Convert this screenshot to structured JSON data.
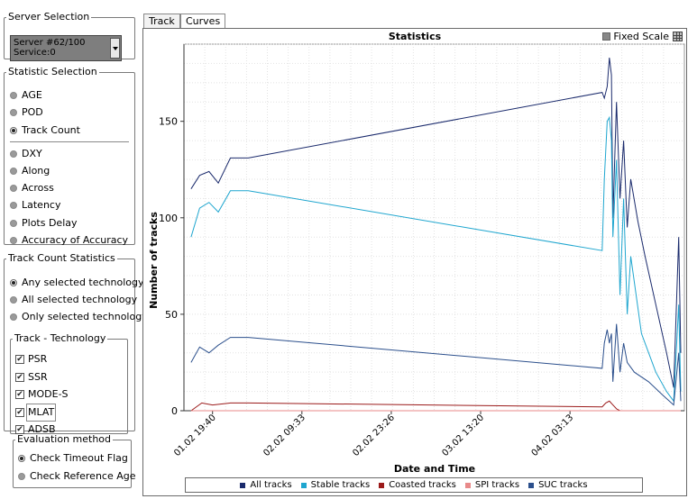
{
  "server_selection": {
    "legend": "Server Selection",
    "combo_line1": "Server #62/100",
    "combo_line2": "Service:0"
  },
  "statistic_selection": {
    "legend": "Statistic Selection",
    "items": [
      {
        "label": "AGE",
        "selected": false
      },
      {
        "label": "POD",
        "selected": false
      },
      {
        "label": "Track Count",
        "selected": true
      },
      {
        "label": "DXY",
        "selected": false
      },
      {
        "label": "Along",
        "selected": false
      },
      {
        "label": "Across",
        "selected": false
      },
      {
        "label": "Latency",
        "selected": false
      },
      {
        "label": "Plots Delay",
        "selected": false
      },
      {
        "label": "Accuracy of Accuracy",
        "selected": false
      }
    ]
  },
  "track_count_statistics": {
    "legend": "Track Count Statistics",
    "items": [
      {
        "label": "Any selected technology",
        "selected": true
      },
      {
        "label": "All selected technology",
        "selected": false
      },
      {
        "label": "Only selected technology",
        "selected": false
      }
    ],
    "technology": {
      "legend": "Track - Technology",
      "items": [
        {
          "label": "PSR",
          "checked": true
        },
        {
          "label": "SSR",
          "checked": true
        },
        {
          "label": "MODE-S",
          "checked": true
        },
        {
          "label": "MLAT",
          "checked": true
        },
        {
          "label": "ADSB",
          "checked": true
        }
      ]
    }
  },
  "evaluation_method": {
    "legend": "Evaluation method",
    "items": [
      {
        "label": "Check Timeout Flag",
        "selected": true
      },
      {
        "label": "Check Reference Age",
        "selected": false
      }
    ]
  },
  "tabs": [
    {
      "label": "Track",
      "active": false
    },
    {
      "label": "Curves",
      "active": true
    }
  ],
  "fixed_scale_label": "Fixed Scale",
  "chart_data": {
    "type": "line",
    "title": "Statistics",
    "xlabel": "Date and Time",
    "ylabel": "Number of tracks",
    "ylim": [
      0,
      190
    ],
    "y_ticks": [
      0,
      50,
      100,
      150
    ],
    "x_tick_labels": [
      "01.02 19:40",
      "02.02 09:33",
      "02.02 23:26",
      "03.02 13:20",
      "04.02 03:13"
    ],
    "grid": true,
    "legend_position": "bottom",
    "series": [
      {
        "name": "All tracks",
        "color": "#1a2a6c",
        "points": [
          [
            0,
            115
          ],
          [
            0.12,
            122
          ],
          [
            0.25,
            124
          ],
          [
            0.38,
            118
          ],
          [
            0.55,
            131
          ],
          [
            0.8,
            131
          ],
          [
            5.75,
            165
          ],
          [
            5.78,
            162
          ],
          [
            5.82,
            168
          ],
          [
            5.85,
            183
          ],
          [
            5.88,
            174
          ],
          [
            5.9,
            100
          ],
          [
            5.95,
            160
          ],
          [
            6.0,
            110
          ],
          [
            6.05,
            140
          ],
          [
            6.1,
            95
          ],
          [
            6.15,
            120
          ],
          [
            6.25,
            98
          ],
          [
            6.35,
            80
          ],
          [
            6.5,
            55
          ],
          [
            6.65,
            30
          ],
          [
            6.75,
            12
          ],
          [
            6.82,
            90
          ],
          [
            6.85,
            30
          ]
        ]
      },
      {
        "name": "Stable tracks",
        "color": "#1fa6cf",
        "points": [
          [
            0,
            90
          ],
          [
            0.12,
            105
          ],
          [
            0.25,
            108
          ],
          [
            0.38,
            103
          ],
          [
            0.55,
            114
          ],
          [
            0.8,
            114
          ],
          [
            5.75,
            83
          ],
          [
            5.78,
            120
          ],
          [
            5.82,
            150
          ],
          [
            5.85,
            152
          ],
          [
            5.88,
            140
          ],
          [
            5.9,
            90
          ],
          [
            5.95,
            130
          ],
          [
            6.0,
            60
          ],
          [
            6.05,
            110
          ],
          [
            6.1,
            50
          ],
          [
            6.15,
            80
          ],
          [
            6.3,
            40
          ],
          [
            6.5,
            20
          ],
          [
            6.65,
            10
          ],
          [
            6.75,
            5
          ],
          [
            6.82,
            55
          ],
          [
            6.85,
            10
          ]
        ]
      },
      {
        "name": "Coasted tracks",
        "color": "#9b1a1a",
        "points": [
          [
            0,
            0
          ],
          [
            0.15,
            4
          ],
          [
            0.3,
            3
          ],
          [
            0.55,
            4
          ],
          [
            0.8,
            4
          ],
          [
            5.75,
            2
          ],
          [
            5.8,
            4
          ],
          [
            5.85,
            5
          ],
          [
            5.9,
            3
          ],
          [
            5.95,
            1
          ],
          [
            6.0,
            0
          ],
          [
            6.85,
            0
          ]
        ]
      },
      {
        "name": "SPI tracks",
        "color": "#e88a8a",
        "points": [
          [
            0,
            0
          ],
          [
            6.85,
            0
          ]
        ]
      },
      {
        "name": "SUC tracks",
        "color": "#2b4f8c",
        "points": [
          [
            0,
            25
          ],
          [
            0.12,
            33
          ],
          [
            0.25,
            30
          ],
          [
            0.38,
            34
          ],
          [
            0.55,
            38
          ],
          [
            0.8,
            38
          ],
          [
            5.75,
            22
          ],
          [
            5.78,
            35
          ],
          [
            5.82,
            42
          ],
          [
            5.85,
            35
          ],
          [
            5.88,
            40
          ],
          [
            5.9,
            15
          ],
          [
            5.95,
            45
          ],
          [
            6.0,
            20
          ],
          [
            6.05,
            35
          ],
          [
            6.1,
            25
          ],
          [
            6.2,
            20
          ],
          [
            6.4,
            15
          ],
          [
            6.6,
            8
          ],
          [
            6.75,
            3
          ],
          [
            6.82,
            30
          ],
          [
            6.85,
            5
          ]
        ]
      }
    ]
  }
}
